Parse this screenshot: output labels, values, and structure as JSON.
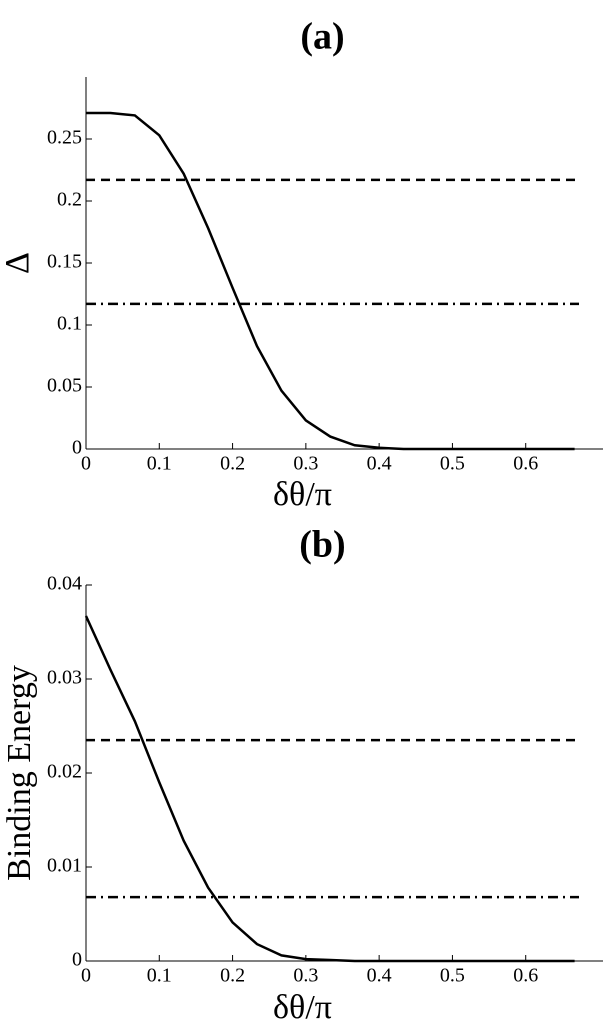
{
  "chart_data": [
    {
      "type": "line",
      "title": "(a)",
      "x_label": "δθ/π",
      "y_label": "Δ",
      "x": [
        0,
        0.0333,
        0.0667,
        0.1,
        0.1333,
        0.1667,
        0.2,
        0.2333,
        0.2667,
        0.3,
        0.3333,
        0.3667,
        0.4,
        0.4333,
        0.4667,
        0.5,
        0.5333,
        0.5667,
        0.6,
        0.6333,
        0.6667
      ],
      "series": [
        {
          "color": "#000000",
          "values": [
            0.271,
            0.271,
            0.269,
            0.253,
            0.222,
            0.178,
            0.13,
            0.083,
            0.047,
            0.023,
            0.01,
            0.003,
            0.001,
            0,
            0,
            0,
            0,
            0,
            0,
            0,
            0
          ]
        }
      ],
      "hlines": [
        {
          "value": 0.217,
          "style": "dashed",
          "color": "#000000"
        },
        {
          "value": 0.117,
          "style": "dashdot",
          "color": "#000000"
        }
      ],
      "xlim": [
        0,
        0.7
      ],
      "ylim": [
        0,
        0.3
      ],
      "xticks": [
        0,
        0.1,
        0.2,
        0.3,
        0.4,
        0.5,
        0.6
      ],
      "yticks": [
        0,
        0.05,
        0.1,
        0.15,
        0.2,
        0.25
      ]
    },
    {
      "type": "line",
      "title": "(b)",
      "x_label": "δθ/π",
      "y_label": "Binding Energy",
      "x": [
        0,
        0.0333,
        0.0667,
        0.1,
        0.1333,
        0.1667,
        0.2,
        0.2333,
        0.2667,
        0.3,
        0.3333,
        0.3667,
        0.4,
        0.4333,
        0.4667,
        0.5,
        0.5333,
        0.5667,
        0.6,
        0.6333,
        0.6667
      ],
      "series": [
        {
          "color": "#000000",
          "values": [
            0.0367,
            0.031,
            0.0255,
            0.019,
            0.0128,
            0.0078,
            0.0041,
            0.0018,
            0.0006,
            0.0002,
            0.0001,
            0,
            0,
            0,
            0,
            0,
            0,
            0,
            0,
            0,
            0
          ]
        }
      ],
      "hlines": [
        {
          "value": 0.0235,
          "style": "dashed",
          "color": "#000000"
        },
        {
          "value": 0.0068,
          "style": "dashdot",
          "color": "#000000"
        }
      ],
      "xlim": [
        0,
        0.7
      ],
      "ylim": [
        0,
        0.04
      ],
      "xticks": [
        0,
        0.1,
        0.2,
        0.3,
        0.4,
        0.5,
        0.6
      ],
      "yticks": [
        0,
        0.01,
        0.02,
        0.03,
        0.04
      ]
    }
  ]
}
